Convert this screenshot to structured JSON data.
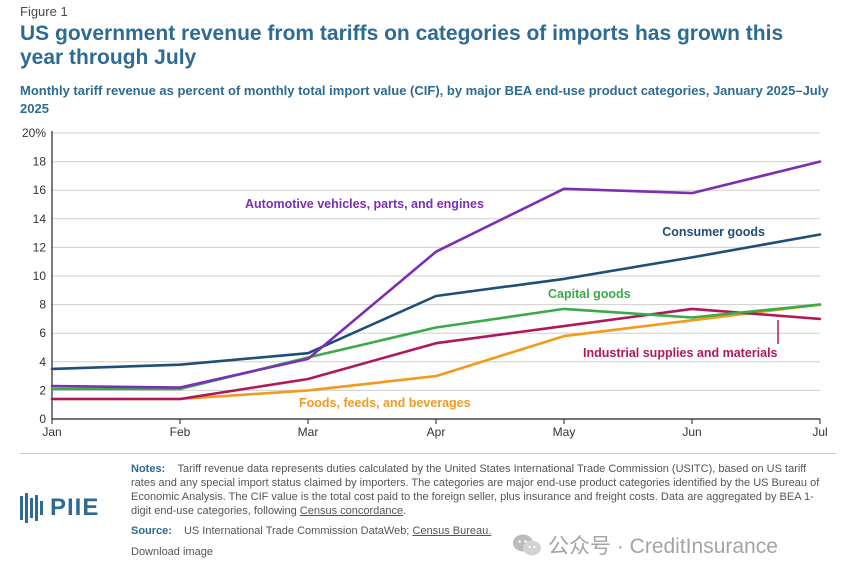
{
  "figure_label": "Figure 1",
  "title": "US government revenue from tariffs on categories of imports has grown this year through July",
  "subtitle": "Monthly tariff revenue as percent of monthly total import value (CIF), by major BEA end-use product categories, January 2025–July 2025",
  "chart_data": {
    "type": "line",
    "title": "",
    "xlabel": "",
    "ylabel": "",
    "categories": [
      "Jan",
      "Feb",
      "Mar",
      "Apr",
      "May",
      "Jun",
      "Jul"
    ],
    "ylim": [
      0,
      20
    ],
    "yticks": [
      0,
      2,
      4,
      6,
      8,
      10,
      12,
      14,
      16,
      18,
      20
    ],
    "ytick_labels": [
      "0",
      "2",
      "4",
      "6",
      "8",
      "10",
      "12",
      "14",
      "16",
      "18",
      "20%"
    ],
    "grid": "horizontal",
    "series": [
      {
        "name": "Automotive vehicles, parts, and engines",
        "color": "#7b2fb3",
        "values": [
          2.3,
          2.2,
          4.2,
          11.7,
          16.1,
          15.8,
          18.0
        ]
      },
      {
        "name": "Consumer goods",
        "color": "#1f4e79",
        "values": [
          3.5,
          3.8,
          4.6,
          8.6,
          9.8,
          11.3,
          12.9
        ]
      },
      {
        "name": "Capital goods",
        "color": "#3aaa4a",
        "values": [
          2.1,
          2.1,
          4.3,
          6.4,
          7.7,
          7.1,
          8.0
        ]
      },
      {
        "name": "Industrial supplies and materials",
        "color": "#b0185c",
        "values": [
          1.4,
          1.4,
          2.8,
          5.3,
          6.5,
          7.7,
          7.0
        ]
      },
      {
        "name": "Foods, feeds, and beverages",
        "color": "#f39a1e",
        "values": [
          1.4,
          1.4,
          2.0,
          3.0,
          5.8,
          6.9,
          8.0
        ]
      }
    ]
  },
  "logo_text": "PIIE",
  "notes": {
    "label": "Notes:",
    "text": "Tariff revenue data represents duties calculated by the United States International Trade Commission (USITC), based on US tariff rates and any special import status claimed by importers. The categories are major end-use product categories identified by the US Bureau of Economic Analysis. The CIF value is the total cost paid to the foreign seller, plus insurance and freight costs. Data are aggregated by BEA 1-digit end-use categories, following",
    "link": "Census concordance",
    "end": "."
  },
  "source": {
    "label": "Source:",
    "text": "US International Trade Commission DataWeb;",
    "link": "Census Bureau."
  },
  "download_label": "Download image",
  "watermark": "公众号 · CreditInsurance",
  "colors": {
    "title": "#2e6b94",
    "axis": "#222222",
    "grid": "#cfcfcf"
  }
}
